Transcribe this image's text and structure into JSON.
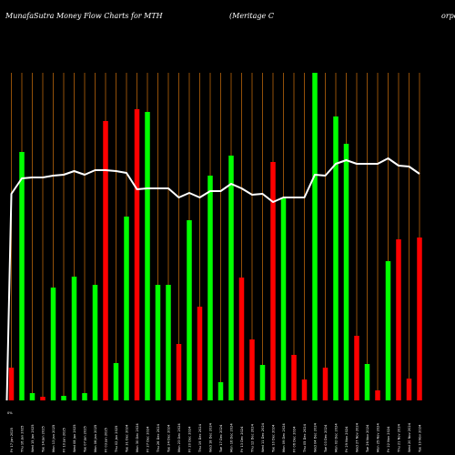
{
  "chart_data": {
    "type": "bar",
    "title_left": "MunafaSutra  Money Flow  Charts for MTH",
    "title_middle": "(Meritage     C",
    "title_right": "orpo",
    "bar_colors": {
      "up": "#00ff00",
      "down": "#ff0000"
    },
    "line_color": "#ffffff",
    "grid_color": "#b8650c",
    "background": "#000000",
    "first_label": "0%",
    "bars": [
      {
        "date": "Fri 17 Jan 2025",
        "value": 36,
        "color": "red"
      },
      {
        "date": "Thu 16 Jan 2025",
        "value": 273,
        "color": "green"
      },
      {
        "date": "Wed 15 Jan 2025",
        "value": 8,
        "color": "green"
      },
      {
        "date": "Tue 14 Jan 2025",
        "value": 4,
        "color": "red"
      },
      {
        "date": "Mon 13 Jan 2025",
        "value": 124,
        "color": "green"
      },
      {
        "date": "Fri 10 Jan 2025",
        "value": 5,
        "color": "green"
      },
      {
        "date": "Wed 08 Jan 2025",
        "value": 136,
        "color": "green"
      },
      {
        "date": "Tue 07 Jan 2025",
        "value": 8,
        "color": "green"
      },
      {
        "date": "Mon 06 Jan 2025",
        "value": 127,
        "color": "green"
      },
      {
        "date": "Fri 03 Jan 2025",
        "value": 307,
        "color": "red"
      },
      {
        "date": "Thu 02 Jan 2025",
        "value": 41,
        "color": "green"
      },
      {
        "date": "Tue 31 Dec 2024",
        "value": 202,
        "color": "green"
      },
      {
        "date": "Mon 30 Dec 2024",
        "value": 320,
        "color": "red"
      },
      {
        "date": "Fri 27 Dec 2024",
        "value": 317,
        "color": "green"
      },
      {
        "date": "Thu 26 Dec 2024",
        "value": 127,
        "color": "green"
      },
      {
        "date": "Tue 24 Dec 2024",
        "value": 127,
        "color": "green"
      },
      {
        "date": "Mon 23 Dec 2024",
        "value": 62,
        "color": "red"
      },
      {
        "date": "Fri 20 Dec 2024",
        "value": 198,
        "color": "green"
      },
      {
        "date": "Thu 19 Dec 2024",
        "value": 103,
        "color": "red"
      },
      {
        "date": "Wed 18 Dec 2024",
        "value": 247,
        "color": "green"
      },
      {
        "date": "Tue 17 Dec 2024",
        "value": 20,
        "color": "green"
      },
      {
        "date": "Mon 16 Dec 2024",
        "value": 269,
        "color": "green"
      },
      {
        "date": "Fri 13 Dec 2024",
        "value": 135,
        "color": "red"
      },
      {
        "date": "Thu 12 Dec 2024",
        "value": 67,
        "color": "red"
      },
      {
        "date": "Wed 11 Dec 2024",
        "value": 39,
        "color": "green"
      },
      {
        "date": "Tue 10 Dec 2024",
        "value": 262,
        "color": "red"
      },
      {
        "date": "Mon 09 Dec 2024",
        "value": 223,
        "color": "green"
      },
      {
        "date": "Fri 06 Dec 2024",
        "value": 50,
        "color": "red"
      },
      {
        "date": "Thu 05 Dec 2024",
        "value": 23,
        "color": "red"
      },
      {
        "date": "Wed 04 Dec 2024",
        "value": 360,
        "color": "green"
      },
      {
        "date": "Tue 03 Dec 2024",
        "value": 36,
        "color": "red"
      },
      {
        "date": "Mon 02 Dec 2024",
        "value": 312,
        "color": "green"
      },
      {
        "date": "Fri 29 Nov 2024",
        "value": 282,
        "color": "green"
      },
      {
        "date": "Wed 27 Nov 2024",
        "value": 71,
        "color": "red"
      },
      {
        "date": "Tue 26 Nov 2024",
        "value": 40,
        "color": "green"
      },
      {
        "date": "Mon 25 Nov 2024",
        "value": 11,
        "color": "red"
      },
      {
        "date": "Fri 22 Nov 2024",
        "value": 153,
        "color": "green"
      },
      {
        "date": "Thu 21 Nov 2024",
        "value": 177,
        "color": "red"
      },
      {
        "date": "Wed 20 Nov 2024",
        "value": 24,
        "color": "red"
      },
      {
        "date": "Tue 19 Nov 2024",
        "value": 179,
        "color": "red"
      }
    ],
    "line_values": [
      227,
      244,
      245,
      245,
      247,
      248,
      252,
      248,
      253,
      253,
      252,
      250,
      232,
      233,
      233,
      233,
      223,
      228,
      223,
      230,
      230,
      238,
      233,
      226,
      227,
      218,
      223,
      223,
      223,
      248,
      247,
      260,
      264,
      260,
      260,
      260,
      266,
      258,
      257,
      249
    ],
    "ylim": [
      0,
      360
    ]
  }
}
